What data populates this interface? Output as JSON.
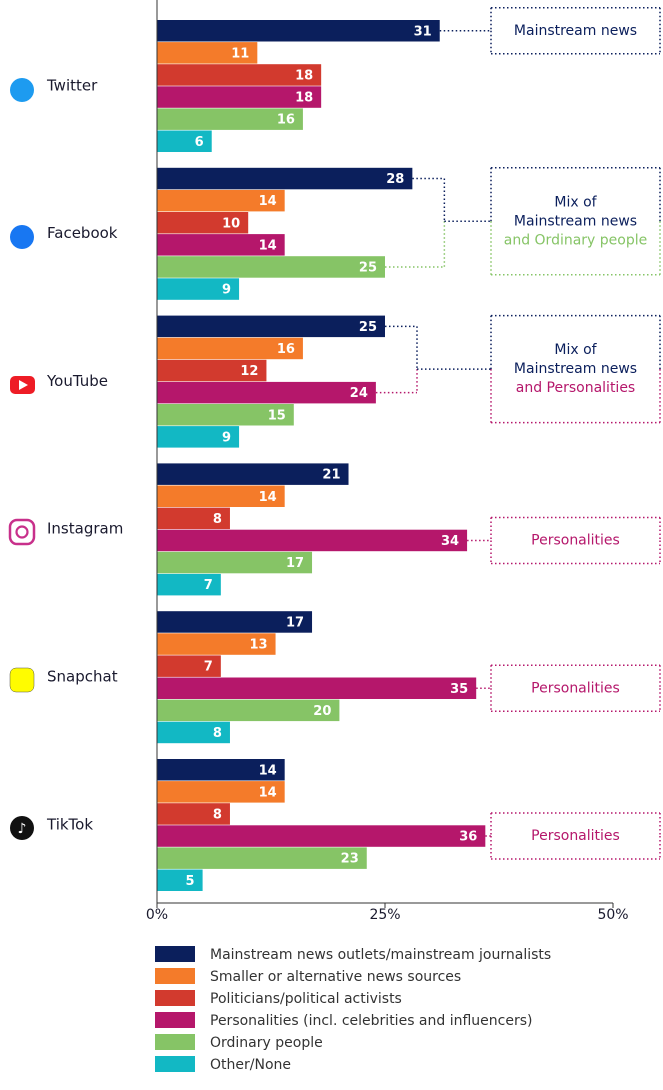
{
  "chart_data": {
    "type": "bar",
    "orientation": "horizontal",
    "categories": [
      "Twitter",
      "Facebook",
      "YouTube",
      "Instagram",
      "Snapchat",
      "TikTok"
    ],
    "series": [
      {
        "name": "Mainstream news outlets/mainstream journalists",
        "color": "#0b1f5c",
        "values": [
          31,
          28,
          25,
          21,
          17,
          14
        ]
      },
      {
        "name": "Smaller or alternative news sources",
        "color": "#f47b2a",
        "values": [
          11,
          14,
          16,
          14,
          13,
          14
        ]
      },
      {
        "name": "Politicians/political activists",
        "color": "#d23a2e",
        "values": [
          18,
          10,
          12,
          8,
          7,
          8
        ]
      },
      {
        "name": "Personalities (incl. celebrities and influencers)",
        "color": "#b5176b",
        "values": [
          18,
          14,
          24,
          34,
          35,
          36
        ]
      },
      {
        "name": "Ordinary people",
        "color": "#86c466",
        "values": [
          16,
          25,
          15,
          17,
          20,
          23
        ]
      },
      {
        "name": "Other/None",
        "color": "#12b8c4",
        "values": [
          6,
          9,
          9,
          7,
          8,
          5
        ]
      }
    ],
    "xlim": [
      0,
      50
    ],
    "xticks": [
      {
        "value": 0,
        "label": "0%"
      },
      {
        "value": 25,
        "label": "25%"
      },
      {
        "value": 50,
        "label": "50%"
      }
    ],
    "annotations": [
      {
        "lines": [
          "Mainstream news"
        ],
        "colors": [
          "#0b1f5c"
        ]
      },
      {
        "lines": [
          "Mix of",
          "Mainstream news",
          "and Ordinary people"
        ],
        "colors": [
          "#0b1f5c",
          "#0b1f5c",
          "#86c466"
        ]
      },
      {
        "lines": [
          "Mix of",
          "Mainstream news",
          "and Personalities"
        ],
        "colors": [
          "#0b1f5c",
          "#0b1f5c",
          "#b5176b"
        ]
      },
      {
        "lines": [
          "Personalities"
        ],
        "colors": [
          "#b5176b"
        ]
      },
      {
        "lines": [
          "Personalities"
        ],
        "colors": [
          "#b5176b"
        ]
      },
      {
        "lines": [
          "Personalities"
        ],
        "colors": [
          "#b5176b"
        ]
      }
    ],
    "legend": "bottom"
  }
}
